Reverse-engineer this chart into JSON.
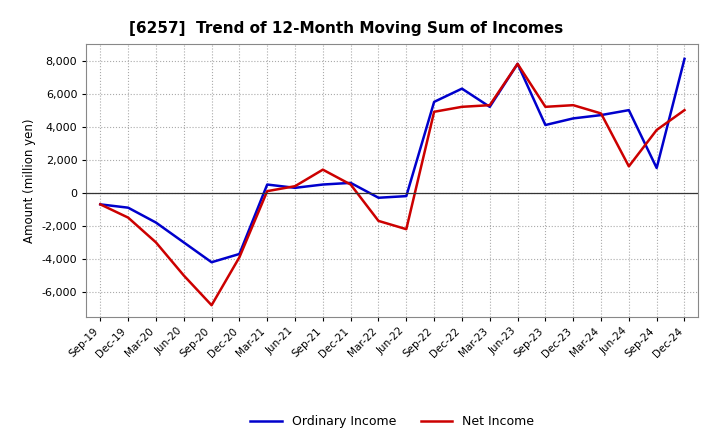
{
  "title": "[6257]  Trend of 12-Month Moving Sum of Incomes",
  "ylabel": "Amount (million yen)",
  "background_color": "#ffffff",
  "plot_bg_color": "#ffffff",
  "grid_color": "#aaaaaa",
  "line_color_ordinary": "#0000cc",
  "line_color_net": "#cc0000",
  "legend_ordinary": "Ordinary Income",
  "legend_net": "Net Income",
  "x_labels": [
    "Sep-19",
    "Dec-19",
    "Mar-20",
    "Jun-20",
    "Sep-20",
    "Dec-20",
    "Mar-21",
    "Jun-21",
    "Sep-21",
    "Dec-21",
    "Mar-22",
    "Jun-22",
    "Sep-22",
    "Dec-22",
    "Mar-23",
    "Jun-23",
    "Sep-23",
    "Dec-23",
    "Mar-24",
    "Jun-24",
    "Sep-24",
    "Dec-24"
  ],
  "ordinary_income": [
    -700,
    -900,
    -1800,
    -3000,
    -4200,
    -3700,
    500,
    300,
    500,
    600,
    -300,
    -200,
    5500,
    6300,
    5200,
    7800,
    4100,
    4500,
    4700,
    5000,
    1500,
    8100
  ],
  "net_income": [
    -700,
    -1500,
    -3000,
    -5000,
    -6800,
    -3900,
    100,
    400,
    1400,
    500,
    -1700,
    -2200,
    4900,
    5200,
    5300,
    7800,
    5200,
    5300,
    4800,
    1600,
    3800,
    5000
  ],
  "ylim": [
    -7500,
    9000
  ],
  "yticks": [
    -6000,
    -4000,
    -2000,
    0,
    2000,
    4000,
    6000,
    8000
  ]
}
